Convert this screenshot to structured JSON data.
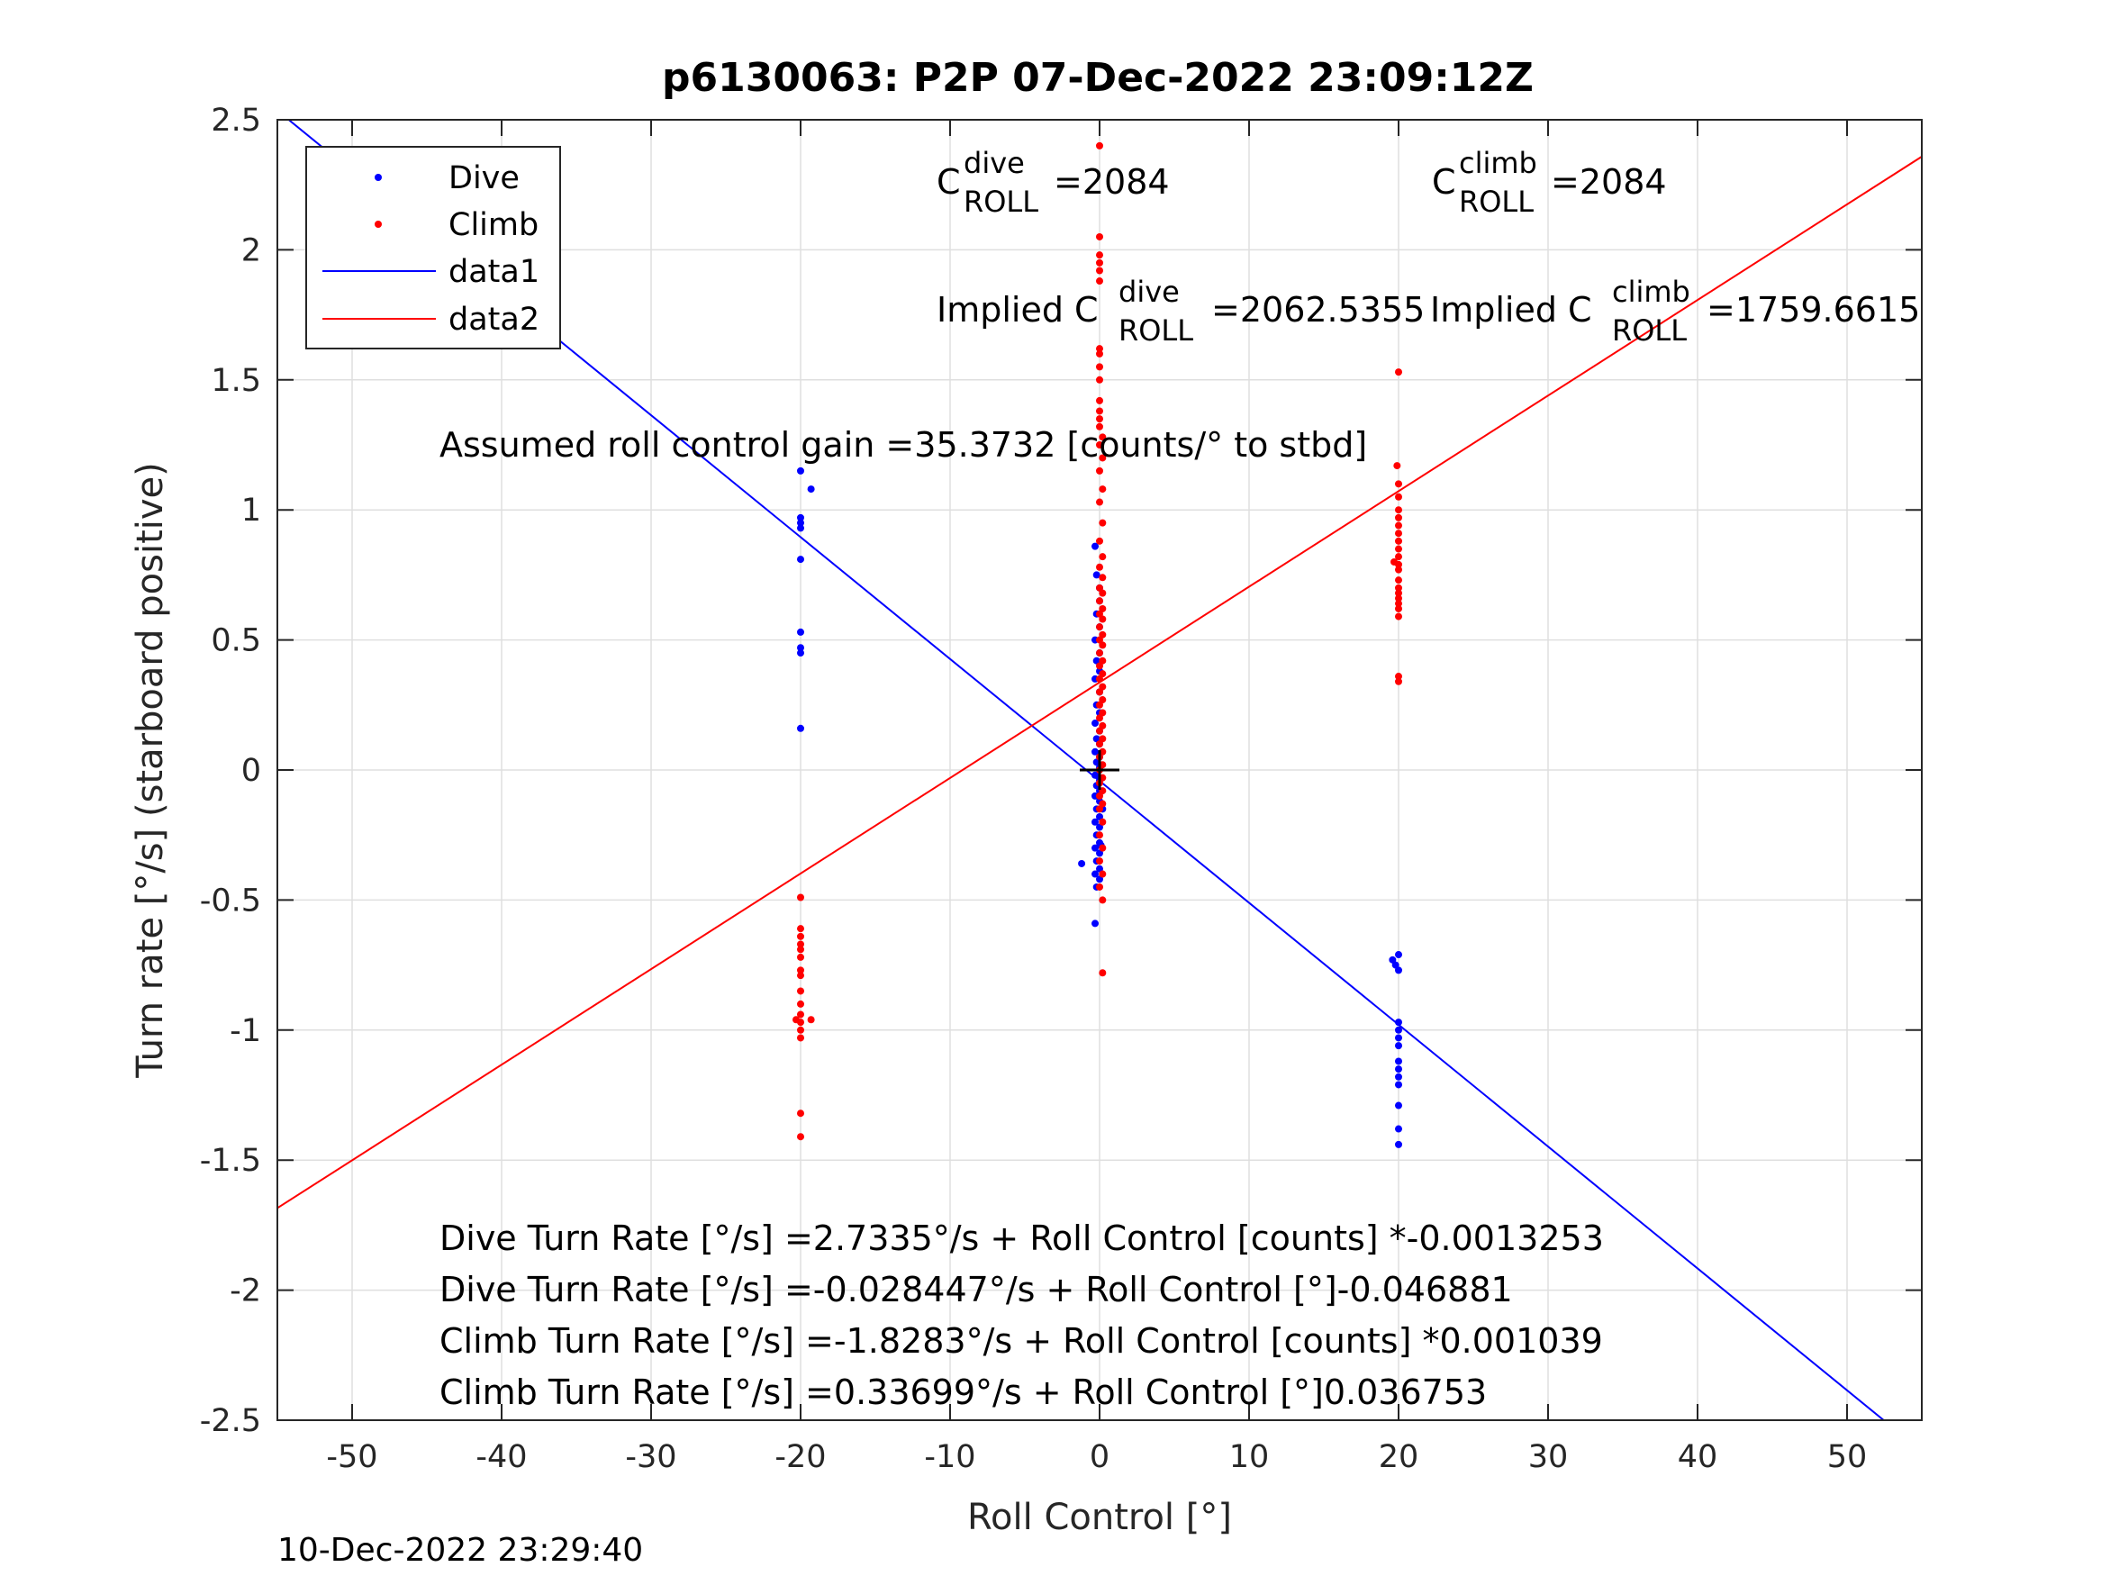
{
  "chart_data": {
    "type": "scatter",
    "title": "p6130063: P2P 07-Dec-2022 23:09:12Z",
    "xlabel": "Roll Control [°]",
    "ylabel": "Turn rate [°/s] (starboard positive)",
    "xlim": [
      -55,
      55
    ],
    "ylim": [
      -2.5,
      2.5
    ],
    "xticks": [
      -50,
      -40,
      -30,
      -20,
      -10,
      0,
      10,
      20,
      30,
      40,
      50
    ],
    "xtick_labels": [
      "-50",
      "-40",
      "-30",
      "-20",
      "-10",
      "0",
      "10",
      "20",
      "30",
      "40",
      "50"
    ],
    "yticks": [
      2.5,
      2,
      1.5,
      1,
      0.5,
      0,
      -0.5,
      -1,
      -1.5,
      -2,
      -2.5
    ],
    "ytick_labels": [
      "2.5",
      "2",
      "1.5",
      "1",
      "0.5",
      "0",
      "-0.5",
      "-1",
      "-1.5",
      "-2",
      "-2.5"
    ],
    "grid": true,
    "legend_position": "top-left",
    "colors": {
      "dive": "#0000ff",
      "climb": "#ff0000",
      "axes": "#262626",
      "grid": "#dfdfdf"
    },
    "legend": [
      "Dive",
      "Climb",
      "data1",
      "data2"
    ],
    "series": [
      {
        "name": "Dive",
        "kind": "points",
        "color": "#0000ff",
        "points": [
          [
            -20,
            1.15
          ],
          [
            -20,
            0.97
          ],
          [
            -20,
            0.95
          ],
          [
            -20,
            0.93
          ],
          [
            -20,
            0.81
          ],
          [
            -20,
            0.53
          ],
          [
            -20,
            0.47
          ],
          [
            -20,
            0.45
          ],
          [
            -20,
            0.16
          ],
          [
            -19.3,
            1.08
          ],
          [
            -0.3,
            0.86
          ],
          [
            -0.2,
            0.75
          ],
          [
            0,
            0.7
          ],
          [
            0,
            0.65
          ],
          [
            -0.2,
            0.6
          ],
          [
            0,
            0.55
          ],
          [
            -0.3,
            0.5
          ],
          [
            0,
            0.45
          ],
          [
            -0.2,
            0.42
          ],
          [
            0,
            0.38
          ],
          [
            -0.3,
            0.35
          ],
          [
            0,
            0.3
          ],
          [
            -0.2,
            0.25
          ],
          [
            0,
            0.22
          ],
          [
            -0.3,
            0.18
          ],
          [
            0,
            0.15
          ],
          [
            -0.2,
            0.12
          ],
          [
            0,
            0.1
          ],
          [
            -0.3,
            0.07
          ],
          [
            0,
            0.05
          ],
          [
            -0.2,
            0.03
          ],
          [
            0,
            0.01
          ],
          [
            -0.3,
            -0.02
          ],
          [
            0,
            -0.04
          ],
          [
            -0.2,
            -0.06
          ],
          [
            0,
            -0.08
          ],
          [
            -0.3,
            -0.1
          ],
          [
            0,
            -0.12
          ],
          [
            -0.2,
            -0.15
          ],
          [
            0,
            -0.18
          ],
          [
            -0.3,
            -0.2
          ],
          [
            0,
            -0.22
          ],
          [
            -0.2,
            -0.25
          ],
          [
            0,
            -0.28
          ],
          [
            -0.3,
            -0.3
          ],
          [
            0,
            -0.32
          ],
          [
            -0.2,
            -0.35
          ],
          [
            0,
            -0.38
          ],
          [
            -0.3,
            -0.4
          ],
          [
            0,
            -0.42
          ],
          [
            -0.2,
            -0.45
          ],
          [
            -1.2,
            -0.36
          ],
          [
            -0.3,
            -0.59
          ],
          [
            0.1,
            -0.29
          ],
          [
            0.2,
            -0.15
          ],
          [
            19.6,
            -0.73
          ],
          [
            19.8,
            -0.75
          ],
          [
            20,
            -0.77
          ],
          [
            20,
            -0.71
          ],
          [
            20,
            -0.97
          ],
          [
            20,
            -1.0
          ],
          [
            20,
            -1.03
          ],
          [
            20,
            -1.06
          ],
          [
            20,
            -1.12
          ],
          [
            20,
            -1.15
          ],
          [
            20,
            -1.18
          ],
          [
            20,
            -1.21
          ],
          [
            20,
            -1.29
          ],
          [
            20,
            -1.38
          ],
          [
            20,
            -1.44
          ]
        ]
      },
      {
        "name": "Climb",
        "kind": "points",
        "color": "#ff0000",
        "points": [
          [
            0,
            2.4
          ],
          [
            0,
            2.05
          ],
          [
            0,
            1.98
          ],
          [
            0,
            1.95
          ],
          [
            0,
            1.92
          ],
          [
            0,
            1.88
          ],
          [
            0,
            1.62
          ],
          [
            0,
            1.6
          ],
          [
            0,
            1.55
          ],
          [
            0,
            1.5
          ],
          [
            0,
            1.42
          ],
          [
            0,
            1.38
          ],
          [
            0,
            1.35
          ],
          [
            0,
            1.32
          ],
          [
            0.2,
            1.28
          ],
          [
            0,
            1.25
          ],
          [
            0.2,
            1.2
          ],
          [
            0,
            1.15
          ],
          [
            0.2,
            1.08
          ],
          [
            0,
            1.03
          ],
          [
            0.2,
            0.95
          ],
          [
            0,
            0.88
          ],
          [
            0.2,
            0.82
          ],
          [
            0,
            0.78
          ],
          [
            0.2,
            0.74
          ],
          [
            0,
            0.7
          ],
          [
            0.2,
            0.68
          ],
          [
            0,
            0.65
          ],
          [
            0.2,
            0.62
          ],
          [
            0,
            0.6
          ],
          [
            0.2,
            0.58
          ],
          [
            0,
            0.55
          ],
          [
            0.2,
            0.52
          ],
          [
            0,
            0.5
          ],
          [
            0.2,
            0.48
          ],
          [
            0,
            0.45
          ],
          [
            0.2,
            0.42
          ],
          [
            0,
            0.4
          ],
          [
            0.2,
            0.37
          ],
          [
            0,
            0.35
          ],
          [
            0.2,
            0.32
          ],
          [
            0,
            0.3
          ],
          [
            0.2,
            0.27
          ],
          [
            0,
            0.25
          ],
          [
            0.2,
            0.22
          ],
          [
            0,
            0.2
          ],
          [
            0.2,
            0.17
          ],
          [
            0,
            0.15
          ],
          [
            0.2,
            0.12
          ],
          [
            0,
            0.1
          ],
          [
            0.2,
            0.07
          ],
          [
            0,
            0.05
          ],
          [
            0.2,
            0.02
          ],
          [
            0,
            0.0
          ],
          [
            0.2,
            -0.03
          ],
          [
            0,
            -0.05
          ],
          [
            0.2,
            -0.08
          ],
          [
            0,
            -0.1
          ],
          [
            0.2,
            -0.13
          ],
          [
            0,
            -0.15
          ],
          [
            0.2,
            -0.2
          ],
          [
            0,
            -0.25
          ],
          [
            0.2,
            -0.3
          ],
          [
            0,
            -0.35
          ],
          [
            0.2,
            -0.4
          ],
          [
            0,
            -0.45
          ],
          [
            0.2,
            -0.5
          ],
          [
            0.2,
            -0.78
          ],
          [
            19.7,
            0.8
          ],
          [
            19.9,
            1.17
          ],
          [
            20,
            1.53
          ],
          [
            20,
            1.1
          ],
          [
            20,
            1.05
          ],
          [
            20,
            1.0
          ],
          [
            20,
            0.97
          ],
          [
            20,
            0.94
          ],
          [
            20,
            0.91
          ],
          [
            20,
            0.88
          ],
          [
            20,
            0.85
          ],
          [
            20,
            0.82
          ],
          [
            20,
            0.79
          ],
          [
            20,
            0.77
          ],
          [
            20,
            0.73
          ],
          [
            20,
            0.7
          ],
          [
            20,
            0.68
          ],
          [
            20,
            0.66
          ],
          [
            20,
            0.64
          ],
          [
            20,
            0.62
          ],
          [
            20,
            0.59
          ],
          [
            20,
            0.36
          ],
          [
            20,
            0.34
          ],
          [
            -20,
            -0.49
          ],
          [
            -20,
            -0.61
          ],
          [
            -20,
            -0.64
          ],
          [
            -20,
            -0.67
          ],
          [
            -20,
            -0.69
          ],
          [
            -20,
            -0.72
          ],
          [
            -20,
            -0.77
          ],
          [
            -20,
            -0.79
          ],
          [
            -20,
            -0.85
          ],
          [
            -20,
            -0.9
          ],
          [
            -20,
            -0.94
          ],
          [
            -20,
            -0.97
          ],
          [
            -20,
            -1.0
          ],
          [
            -20,
            -1.03
          ],
          [
            -20,
            -1.32
          ],
          [
            -20,
            -1.41
          ],
          [
            -19.3,
            -0.96
          ],
          [
            -20.3,
            -0.96
          ]
        ]
      },
      {
        "name": "data1",
        "kind": "line",
        "color": "#0000ff",
        "x": [
          -55,
          55
        ],
        "y": [
          2.5356,
          -2.6194
        ]
      },
      {
        "name": "data2",
        "kind": "line",
        "color": "#ff0000",
        "x": [
          -55,
          55
        ],
        "y": [
          -1.6844,
          2.3584
        ]
      }
    ],
    "annotations": {
      "c_roll_dive_base": "C",
      "c_roll_dive_sup": "dive",
      "c_roll_dive_sub": "ROLL",
      "c_roll_dive_value": "=2084",
      "c_roll_climb_base": "C",
      "c_roll_climb_sup": "climb",
      "c_roll_climb_sub": "ROLL",
      "c_roll_climb_value": "=2084",
      "implied_dive_base": "Implied C",
      "implied_dive_sup": "dive",
      "implied_dive_sub": "ROLL",
      "implied_dive_value": "=2062.5355",
      "implied_climb_base": "Implied C",
      "implied_climb_sup": "climb",
      "implied_climb_sub": "ROLL",
      "implied_climb_value": "=1759.6615",
      "gain": "Assumed roll control gain =35.3732 [counts/° to stbd]",
      "eq1": "Dive Turn Rate [°/s] =2.7335°/s + Roll Control [counts] *-0.0013253",
      "eq2": "Dive Turn Rate [°/s] =-0.028447°/s + Roll Control [°]-0.046881",
      "eq3": "Climb Turn Rate [°/s] =-1.8283°/s + Roll Control [counts] *0.001039",
      "eq4": "Climb Turn Rate [°/s] =0.33699°/s + Roll Control [°]0.036753"
    },
    "center_marker": [
      0,
      0
    ],
    "timestamp": "10-Dec-2022 23:29:40"
  }
}
